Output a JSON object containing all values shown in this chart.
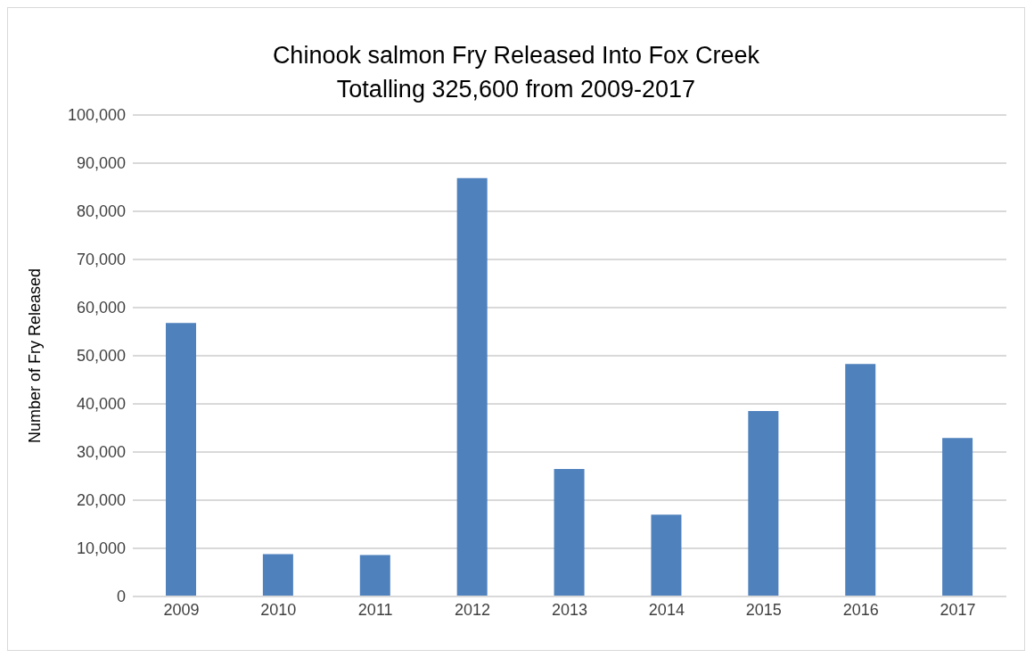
{
  "chart_data": {
    "type": "bar",
    "title": "Chinook salmon Fry Released Into Fox Creek\nTotalling 325,600 from 2009-2017",
    "ylabel": "Number of Fry Released",
    "categories": [
      "2009",
      "2010",
      "2011",
      "2012",
      "2013",
      "2014",
      "2015",
      "2016",
      "2017"
    ],
    "values": [
      56800,
      8800,
      8600,
      86900,
      26500,
      17000,
      38500,
      48300,
      32900
    ],
    "color": "#4f81bd",
    "ylim": [
      0,
      100000
    ],
    "yticks": [
      0,
      {
        "value": 10000,
        "label": "10,000"
      },
      {
        "value": 20000,
        "label": "20,000"
      },
      {
        "value": 30000,
        "label": "30,000"
      },
      {
        "value": 40000,
        "label": "40,000"
      },
      {
        "value": 50000,
        "label": "50,000"
      },
      {
        "value": 60000,
        "label": "60,000"
      },
      {
        "value": 70000,
        "label": "70,000"
      },
      {
        "value": 80000,
        "label": "80,000"
      },
      {
        "value": 90000,
        "label": "90,000"
      },
      {
        "value": 100000,
        "label": "100,000"
      }
    ],
    "grid": "y"
  }
}
